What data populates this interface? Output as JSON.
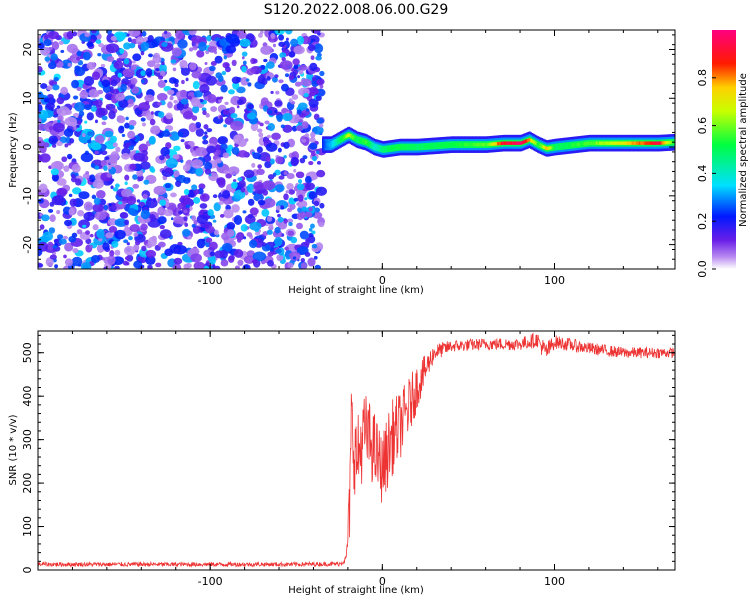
{
  "title": "S120.2022.008.06.00.G29",
  "chart_data": [
    {
      "type": "heatmap",
      "name": "spectrogram",
      "xlabel": "Height of straight line (km)",
      "ylabel": "Frequency (Hz)",
      "xlim": [
        -200,
        170
      ],
      "ylim": [
        -25,
        24
      ],
      "xticks": [
        -100,
        0,
        100
      ],
      "xtick_labels": [
        "-100",
        "0",
        "100"
      ],
      "yticks": [
        -20,
        -10,
        0,
        10,
        20
      ],
      "ytick_labels": [
        "-20",
        "-10",
        "0",
        "10",
        "20"
      ],
      "colorbar": {
        "label": "Normalized spectral amplitude",
        "range": [
          0,
          1
        ],
        "ticks": [
          0,
          0.2,
          0.4,
          0.6,
          0.8
        ],
        "tick_labels": [
          "0.0",
          "0.2",
          "0.4",
          "0.6",
          "0.8"
        ],
        "colormap": "rainbow (white-violet-blue-cyan-green-yellow-red-magenta)"
      },
      "regions": [
        {
          "description_x_range": [
            -200,
            -35
          ],
          "pattern": "noise",
          "amplitude_range": [
            0.05,
            0.35
          ]
        },
        {
          "description_x_range": [
            -35,
            170
          ],
          "pattern": "signal band",
          "center_frequency": 0.8,
          "bandwidth": 3
        }
      ],
      "signal_ridge": {
        "x": [
          -35,
          -30,
          -25,
          -20,
          -15,
          -10,
          -5,
          0,
          10,
          20,
          40,
          60,
          70,
          80,
          85,
          90,
          95,
          100,
          120,
          140,
          160,
          170
        ],
        "frequency": [
          0.5,
          0.5,
          1.5,
          2.5,
          1.5,
          1,
          0,
          -0.5,
          0,
          0,
          0.5,
          0.5,
          0.8,
          0.8,
          1.5,
          0.5,
          -0.3,
          0,
          0.8,
          0.8,
          0.8,
          1.0
        ],
        "amplitude": [
          0.25,
          0.35,
          0.5,
          0.7,
          0.5,
          0.6,
          0.4,
          0.5,
          0.55,
          0.5,
          0.55,
          0.6,
          0.95,
          1.0,
          0.85,
          0.55,
          0.8,
          0.5,
          0.6,
          0.75,
          0.95,
          0.5
        ]
      }
    },
    {
      "type": "line",
      "name": "snr",
      "xlabel": "Height of straight line (km)",
      "ylabel": "SNR (10 * v/v)",
      "xlim": [
        -200,
        170
      ],
      "ylim": [
        0,
        550
      ],
      "xticks": [
        -100,
        0,
        100
      ],
      "xtick_labels": [
        "-100",
        "0",
        "100"
      ],
      "yticks": [
        0,
        100,
        200,
        300,
        400,
        500
      ],
      "ytick_labels": [
        "0",
        "100",
        "200",
        "300",
        "400",
        "500"
      ],
      "line_color": "#ee3333",
      "envelope": {
        "x": [
          -200,
          -150,
          -100,
          -50,
          -25,
          -21,
          -19,
          -18,
          -15,
          -10,
          -5,
          0,
          5,
          10,
          15,
          20,
          25,
          30,
          40,
          60,
          80,
          90,
          95,
          100,
          120,
          140,
          170
        ],
        "y": [
          13,
          13,
          13,
          13,
          14,
          25,
          140,
          330,
          250,
          320,
          280,
          230,
          300,
          330,
          370,
          420,
          460,
          500,
          515,
          520,
          520,
          530,
          500,
          525,
          510,
          500,
          500
        ],
        "noise_amplitude": [
          5,
          5,
          5,
          5,
          5,
          10,
          80,
          110,
          100,
          90,
          90,
          80,
          90,
          80,
          70,
          55,
          35,
          20,
          14,
          14,
          15,
          18,
          25,
          16,
          14,
          13,
          12
        ]
      }
    }
  ]
}
